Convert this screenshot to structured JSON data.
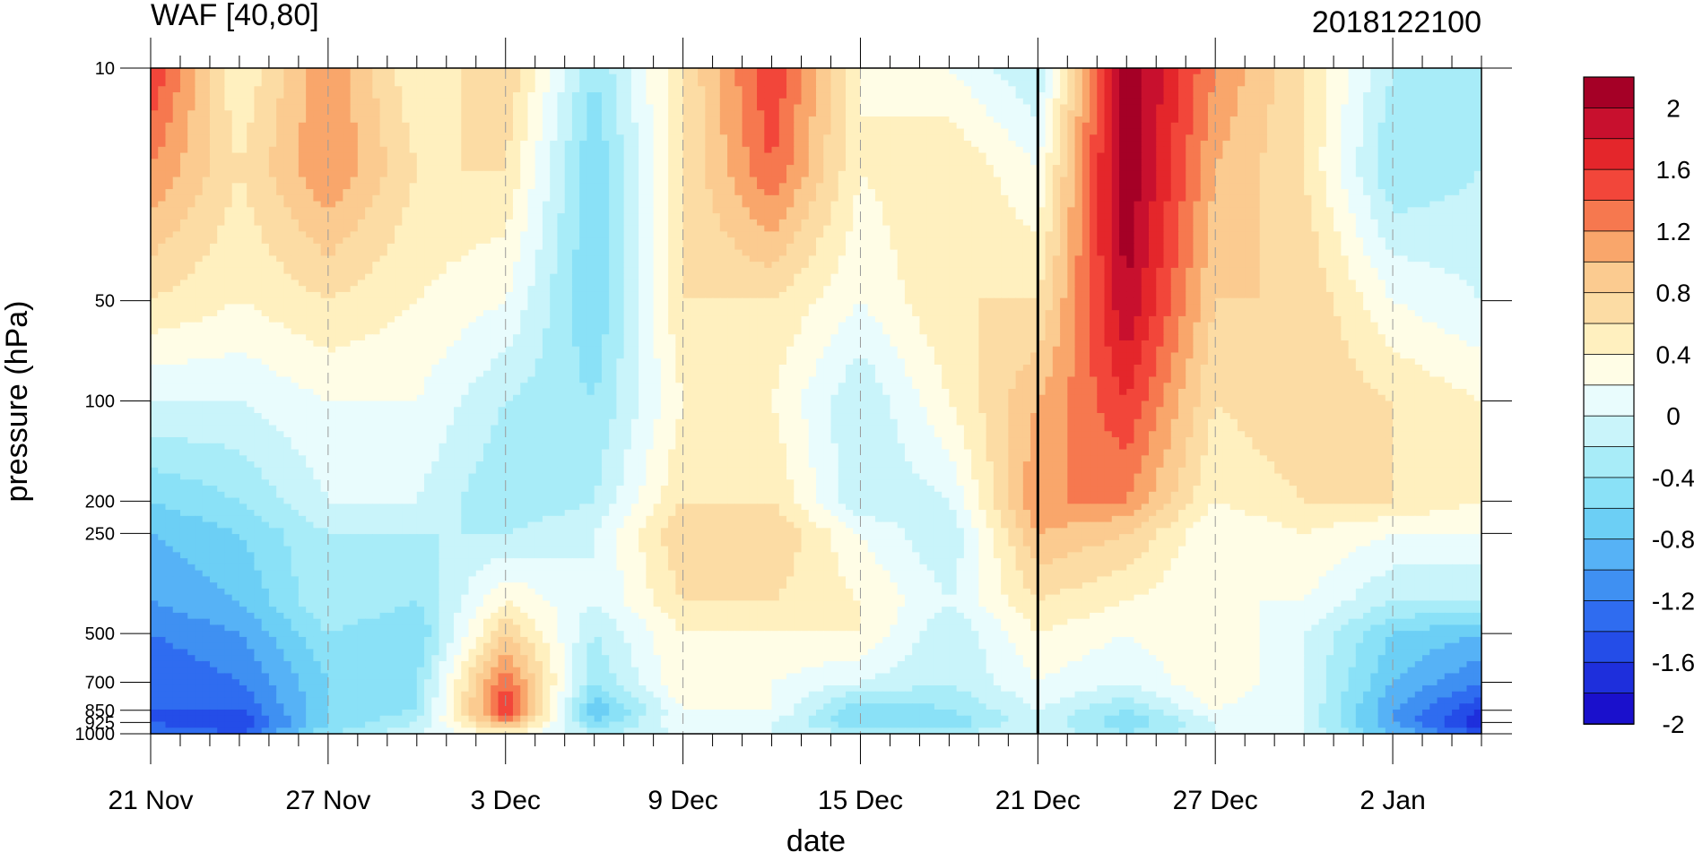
{
  "chart_data": {
    "type": "heatmap",
    "subtype": "filled-contour",
    "title_left": "WAF [40,80]",
    "title_right": "2018122100",
    "xlabel": "date",
    "ylabel": "pressure (hPa)",
    "x_tick_labels": [
      "21 Nov",
      "27 Nov",
      "3 Dec",
      "9 Dec",
      "15 Dec",
      "21 Dec",
      "27 Dec",
      "2 Jan"
    ],
    "x_range": [
      "2018-11-21",
      "2019-01-05"
    ],
    "y_scale": "log",
    "y_reversed": true,
    "y_range": [
      1000,
      10
    ],
    "y_tick_labels": [
      "10",
      "50",
      "100",
      "200",
      "250",
      "500",
      "700",
      "850",
      "925",
      "1000"
    ],
    "y_ticks": [
      10,
      50,
      100,
      200,
      250,
      500,
      700,
      850,
      925,
      1000
    ],
    "forecast_start_line": "2018-12-21",
    "grid": "dashed vertical gridlines at labeled dates",
    "colorbar": {
      "placement": "right",
      "tick_labels": [
        "2",
        "1.6",
        "1.2",
        "0.8",
        "0.4",
        "0",
        "-0.4",
        "-0.8",
        "-1.2",
        "-1.6",
        "-2"
      ],
      "levels": [
        2,
        1.8,
        1.6,
        1.4,
        1.2,
        1.0,
        0.8,
        0.6,
        0.4,
        0.2,
        0,
        -0.2,
        -0.4,
        -0.6,
        -0.8,
        -1.0,
        -1.2,
        -1.4,
        -1.6,
        -1.8,
        -2
      ],
      "colors": [
        "#a50026",
        "#c8102e",
        "#e4262b",
        "#f2463a",
        "#f6784f",
        "#f9a66b",
        "#fbcb90",
        "#fcdca4",
        "#fff0bf",
        "#fffde6",
        "#e9fcfd",
        "#c9f4fa",
        "#a8ecf8",
        "#8ae1f7",
        "#6ccff5",
        "#56b2f6",
        "#3f90f2",
        "#2f6cf0",
        "#244de8",
        "#1e2fdc",
        "#1a10cc"
      ]
    },
    "profile_pressures": [
      10,
      20,
      50,
      100,
      200,
      250,
      400,
      500,
      700,
      850,
      925,
      1000
    ],
    "day_samples": [
      0,
      3,
      6,
      9,
      12,
      15,
      18,
      21,
      24,
      27,
      30,
      33,
      36,
      39,
      42,
      45
    ],
    "values": [
      [
        1.6,
        1.2,
        0.6,
        0.0,
        -0.6,
        -0.8,
        -1.0,
        -1.2,
        -1.4,
        -1.4,
        -1.4,
        -1.2
      ],
      [
        0.4,
        0.6,
        0.4,
        0.0,
        -0.4,
        -0.6,
        -0.8,
        -1.0,
        -1.2,
        -1.4,
        -1.6,
        -1.4
      ],
      [
        1.2,
        1.2,
        0.6,
        0.2,
        0.0,
        -0.2,
        -0.2,
        -0.4,
        -0.6,
        -0.6,
        -0.6,
        -0.4
      ],
      [
        0.4,
        0.6,
        0.4,
        0.2,
        0.0,
        -0.2,
        -0.4,
        -0.6,
        -0.4,
        -0.4,
        -0.2,
        0.0
      ],
      [
        0.8,
        0.6,
        0.2,
        -0.2,
        -0.4,
        -0.2,
        0.4,
        0.8,
        1.4,
        1.6,
        1.2,
        0.4
      ],
      [
        -0.4,
        -0.6,
        -0.6,
        -0.4,
        -0.2,
        0.0,
        0.0,
        -0.2,
        -0.4,
        -0.8,
        -0.6,
        -0.2
      ],
      [
        0.6,
        0.6,
        0.6,
        0.4,
        0.6,
        0.8,
        0.6,
        0.4,
        0.4,
        0.2,
        0.2,
        0.0
      ],
      [
        1.6,
        1.4,
        0.6,
        0.4,
        0.6,
        0.8,
        0.6,
        0.4,
        0.2,
        0.2,
        0.0,
        0.0
      ],
      [
        0.4,
        0.4,
        0.2,
        -0.2,
        -0.2,
        0.2,
        0.4,
        0.4,
        0.0,
        -0.6,
        -0.6,
        -0.2
      ],
      [
        0.2,
        0.6,
        0.6,
        0.4,
        0.0,
        -0.2,
        0.0,
        -0.2,
        -0.2,
        -0.4,
        -0.6,
        -0.2
      ],
      [
        -0.2,
        0.2,
        0.6,
        1.0,
        1.2,
        1.0,
        0.6,
        0.4,
        0.2,
        0.0,
        0.0,
        0.0
      ],
      [
        2.2,
        2.2,
        2.0,
        1.6,
        1.2,
        0.8,
        0.4,
        0.2,
        0.0,
        -0.4,
        -0.6,
        -0.4
      ],
      [
        1.2,
        1.0,
        0.8,
        0.6,
        0.4,
        0.2,
        0.2,
        0.4,
        0.4,
        0.2,
        0.0,
        0.0
      ],
      [
        0.6,
        0.6,
        0.8,
        0.8,
        0.6,
        0.4,
        0.2,
        0.0,
        0.0,
        0.0,
        0.0,
        0.0
      ],
      [
        -0.2,
        -0.4,
        0.2,
        0.6,
        0.6,
        0.2,
        -0.2,
        -0.6,
        -0.8,
        -1.0,
        -1.0,
        -0.8
      ],
      [
        -0.4,
        -0.2,
        0.0,
        0.4,
        0.4,
        0.2,
        -0.2,
        -0.8,
        -1.2,
        -1.6,
        -1.8,
        -1.4
      ]
    ]
  }
}
